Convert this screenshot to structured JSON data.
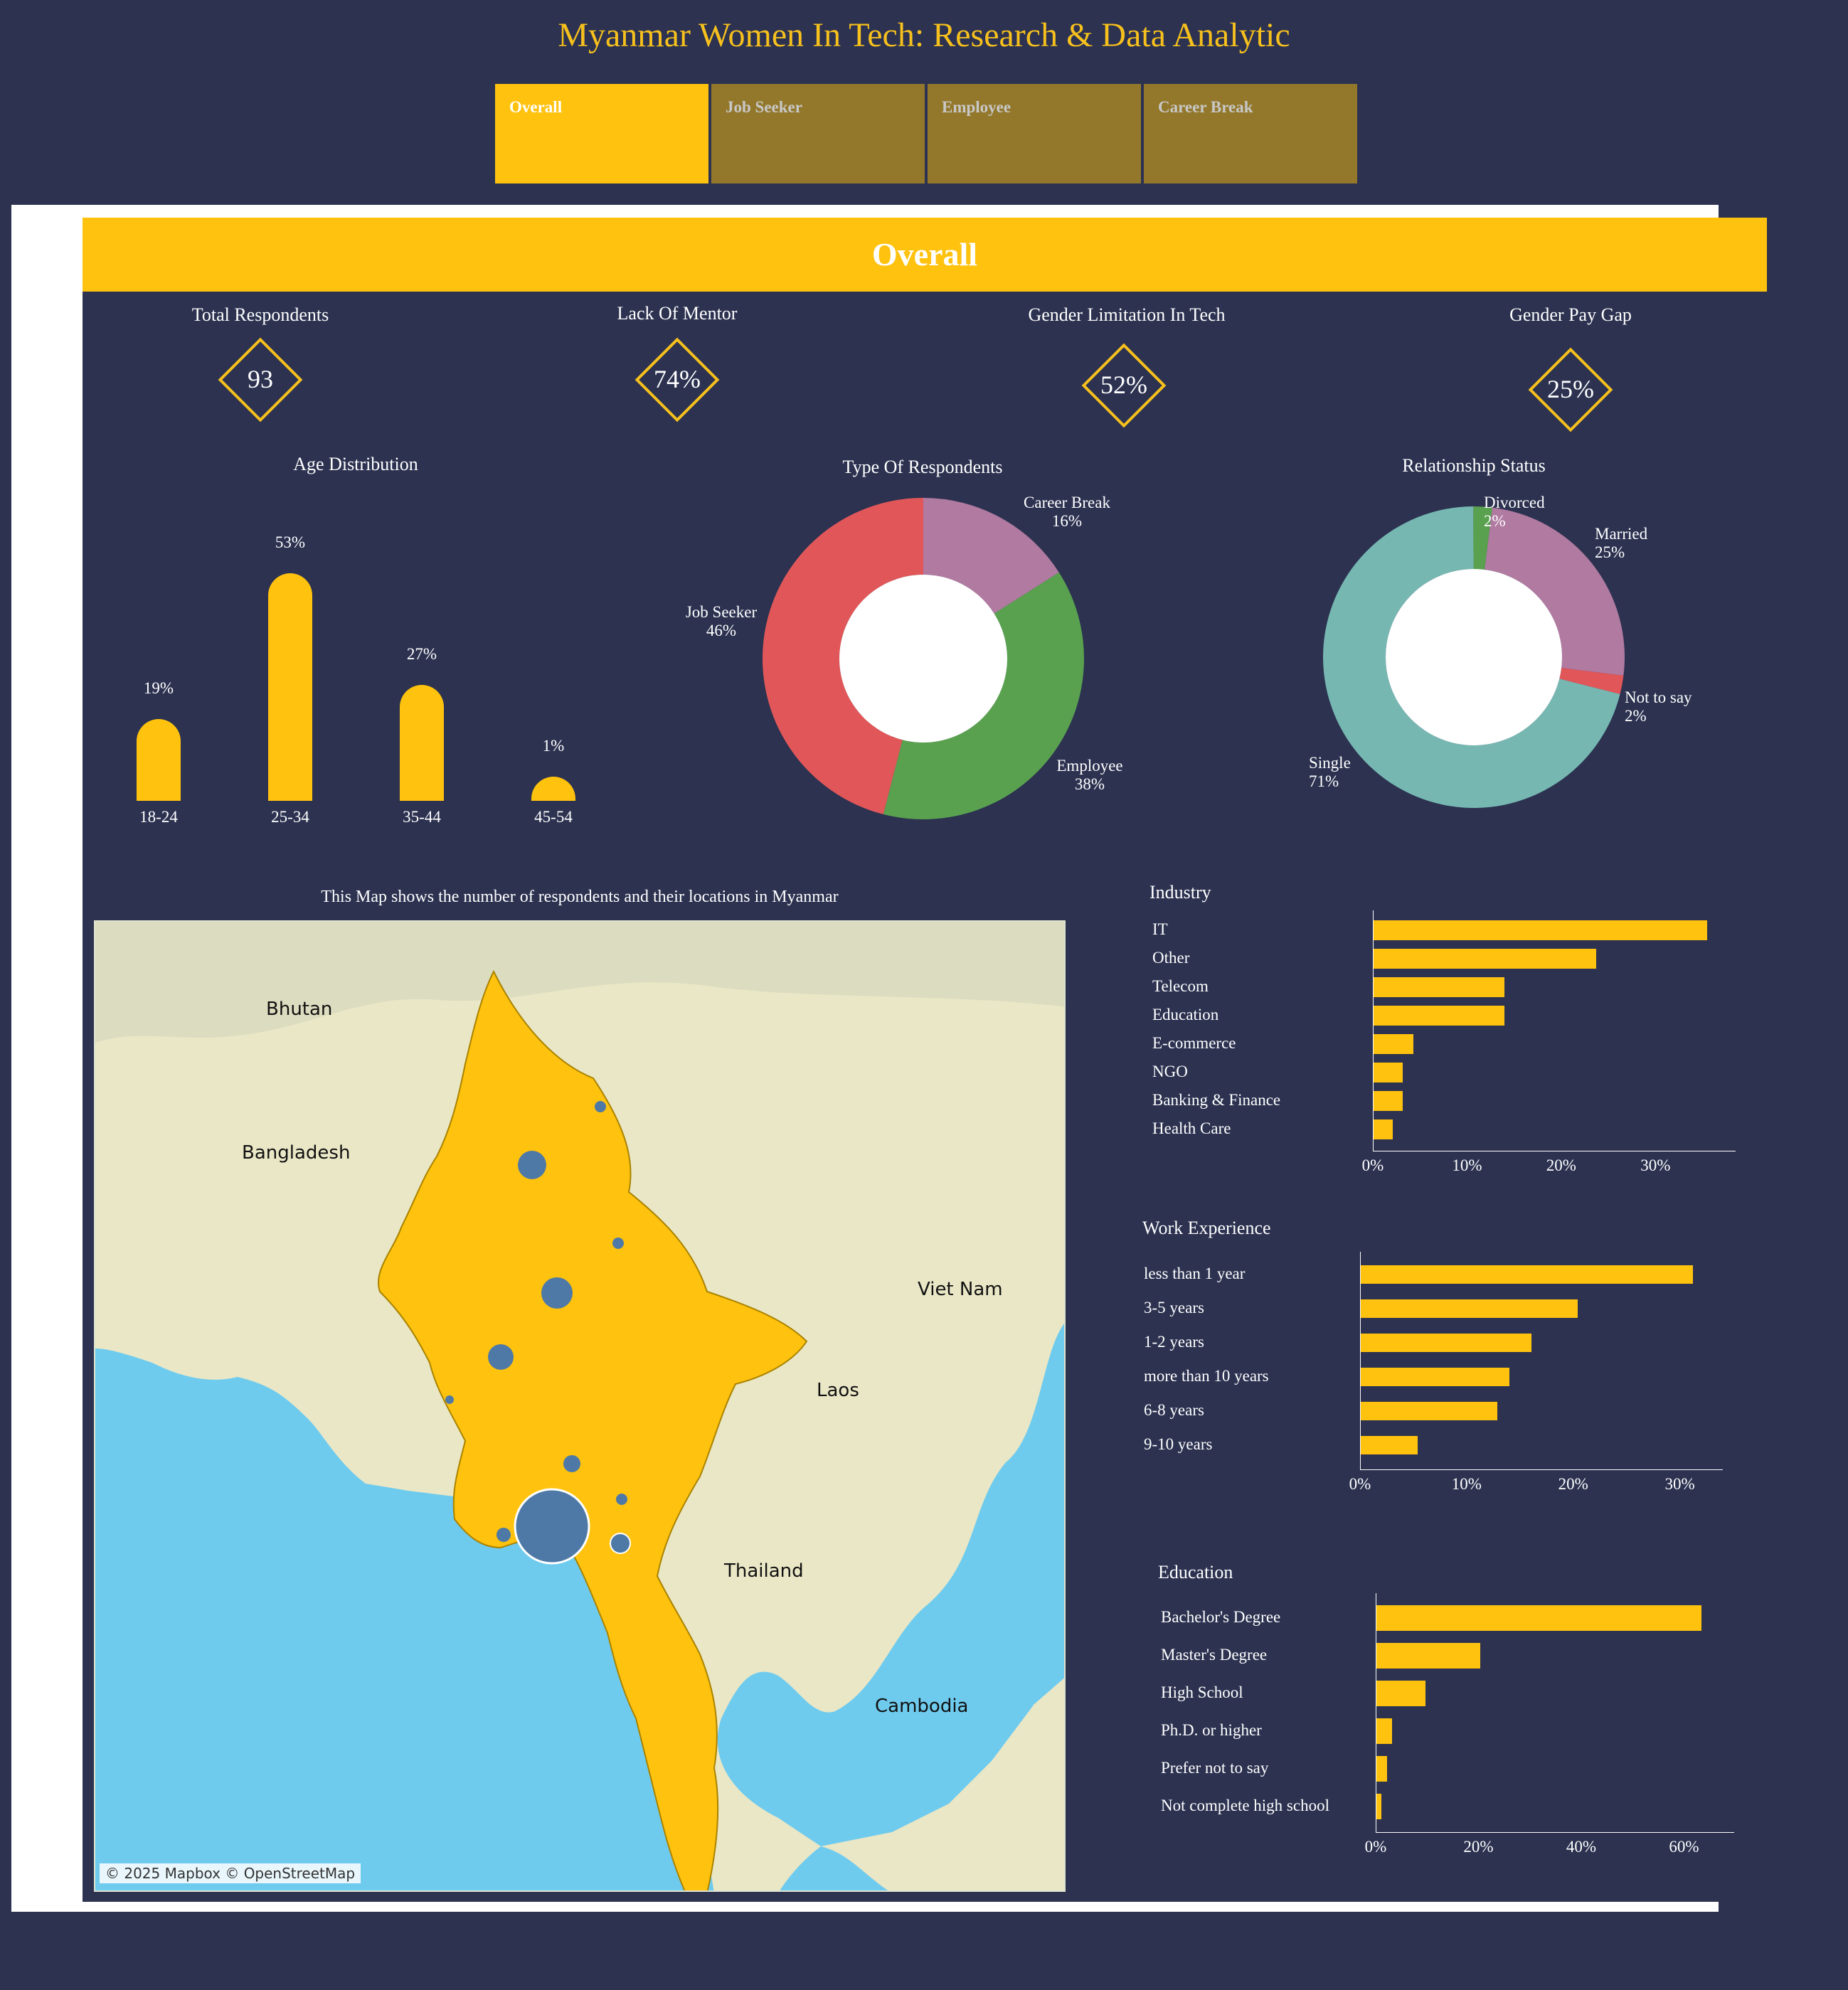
{
  "title": "Myanmar Women In Tech: Research & Data Analytic",
  "tabs": [
    {
      "label": "Overall",
      "active": true
    },
    {
      "label": "Job Seeker",
      "active": false
    },
    {
      "label": "Employee",
      "active": false
    },
    {
      "label": "Career Break",
      "active": false
    }
  ],
  "banner": "Overall",
  "kpis": [
    {
      "label": "Total Respondents",
      "value": "93"
    },
    {
      "label": "Lack Of Mentor",
      "value": "74%"
    },
    {
      "label": "Gender Limitation In Tech",
      "value": "52%"
    },
    {
      "label": "Gender Pay Gap",
      "value": "25%"
    }
  ],
  "colors": {
    "accent": "#ffc20e",
    "background": "#2c3250",
    "title": "#f6c01d",
    "bubble": "#4e79a7"
  },
  "chart_data": [
    {
      "type": "bar",
      "title": "Age Distribution",
      "categories": [
        "18-24",
        "25-34",
        "35-44",
        "45-54"
      ],
      "values": [
        19,
        53,
        27,
        1
      ],
      "labels": [
        "19%",
        "53%",
        "27%",
        "1%"
      ],
      "ylim": [
        0,
        53
      ]
    },
    {
      "type": "pie",
      "title": "Type Of Respondents",
      "slices": [
        {
          "name": "Career Break",
          "value": 16,
          "label": "16%",
          "color": "#b07aa1"
        },
        {
          "name": "Employee",
          "value": 38,
          "label": "38%",
          "color": "#59a14f"
        },
        {
          "name": "Job Seeker",
          "value": 46,
          "label": "46%",
          "color": "#e15759"
        }
      ]
    },
    {
      "type": "pie",
      "title": "Relationship Status",
      "slices": [
        {
          "name": "Married",
          "value": 25,
          "label": "25%",
          "color": "#b07aa1"
        },
        {
          "name": "Not to say",
          "value": 2,
          "label": "2%",
          "color": "#e15759"
        },
        {
          "name": "Single",
          "value": 71,
          "label": "71%",
          "color": "#76b7b2"
        },
        {
          "name": "Divorced",
          "value": 2,
          "label": "2%",
          "color": "#59a14f"
        }
      ]
    },
    {
      "type": "bar",
      "title": "Industry",
      "orientation": "horizontal",
      "categories": [
        "IT",
        "Other",
        "Telecom",
        "Education",
        "E-commerce",
        "NGO",
        "Banking & Finance",
        "Health Care"
      ],
      "values": [
        35.5,
        23.7,
        14.0,
        14.0,
        4.3,
        3.2,
        3.2,
        2.1
      ],
      "xticks": [
        "0%",
        "10%",
        "20%",
        "30%"
      ],
      "xtick_values": [
        0,
        10,
        20,
        30
      ],
      "xlim": [
        0,
        37
      ]
    },
    {
      "type": "bar",
      "title": "Work Experience",
      "orientation": "horizontal",
      "categories": [
        "less than 1 year",
        "3-5 years",
        "1-2 years",
        "more than 10 years",
        "6-8 years",
        "9-10 years"
      ],
      "values": [
        31.2,
        20.4,
        16.1,
        14.0,
        12.9,
        5.4
      ],
      "xticks": [
        "0%",
        "10%",
        "20%",
        "30%"
      ],
      "xtick_values": [
        0,
        10,
        20,
        30
      ],
      "xlim": [
        0,
        32.7
      ]
    },
    {
      "type": "bar",
      "title": "Education",
      "orientation": "horizontal",
      "categories": [
        "Bachelor's Degree",
        "Master's Degree",
        "High School",
        "Ph.D. or higher",
        "Prefer not to say",
        "Not complete high school"
      ],
      "values": [
        63.4,
        20.4,
        9.7,
        3.2,
        2.2,
        1.1
      ],
      "xticks": [
        "0%",
        "20%",
        "40%",
        "60%"
      ],
      "xtick_values": [
        0,
        20,
        40,
        60
      ],
      "xlim": [
        0,
        67
      ]
    }
  ],
  "map": {
    "caption": "This Map shows the number of respondents and their locations in Myanmar",
    "countries": [
      "Bhutan",
      "Bangladesh",
      "Viet Nam",
      "Laos",
      "Thailand",
      "Cambodia"
    ],
    "attribution": "© 2025 Mapbox © OpenStreetMap"
  }
}
